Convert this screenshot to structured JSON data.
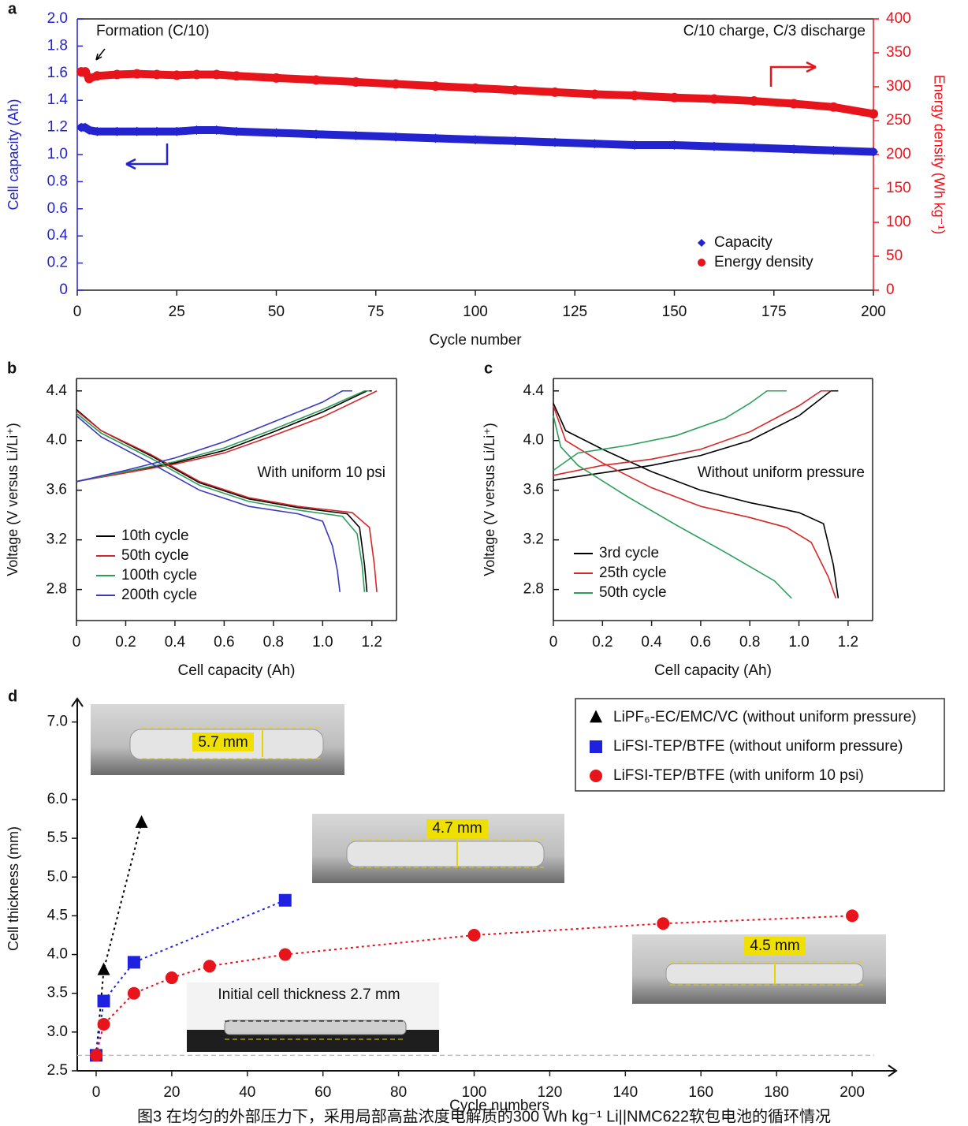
{
  "caption": "图3 在均匀的外部压力下，采用局部高盐浓度电解质的300 Wh kg⁻¹ Li||NMC622软包电池的循环情况",
  "chart_data": [
    {
      "type": "scatter",
      "label": "a",
      "frame": true,
      "xlabel": "Cycle number",
      "ylabel": "Cell capacity (Ah)",
      "y2label": "Energy density (Wh kg⁻¹)",
      "annotations": [
        "Formation (C/10)",
        "C/10 charge, C/3 discharge"
      ],
      "xlim": [
        0,
        200
      ],
      "xticks": [
        0,
        25,
        50,
        75,
        100,
        125,
        150,
        175,
        200
      ],
      "ylim": [
        0,
        2.0
      ],
      "yticks": [
        0,
        0.2,
        0.4,
        0.6,
        0.8,
        {
          "value": 1.0,
          "label": "1.0"
        },
        1.2,
        1.4,
        1.6,
        1.8,
        {
          "value": 2.0,
          "label": "2.0"
        }
      ],
      "y2lim": [
        0,
        400
      ],
      "y2ticks": [
        0,
        50,
        100,
        150,
        200,
        250,
        300,
        350,
        400
      ],
      "ycolor": "#2323d0",
      "y2color": "#e8141c",
      "legend": "lower right",
      "series": [
        {
          "name": "Capacity",
          "color": "#2323d0",
          "marker": "diamond",
          "axis": "y",
          "x": [
            1,
            2,
            3,
            5,
            10,
            15,
            20,
            25,
            30,
            35,
            40,
            50,
            60,
            70,
            80,
            90,
            100,
            110,
            120,
            130,
            140,
            150,
            160,
            170,
            180,
            190,
            200
          ],
          "values": [
            1.2,
            1.2,
            1.18,
            1.17,
            1.17,
            1.17,
            1.17,
            1.17,
            1.18,
            1.18,
            1.17,
            1.16,
            1.15,
            1.14,
            1.13,
            1.12,
            1.11,
            1.1,
            1.09,
            1.08,
            1.07,
            1.07,
            1.06,
            1.05,
            1.04,
            1.03,
            1.02
          ]
        },
        {
          "name": "Energy density",
          "color": "#e8141c",
          "marker": "circle",
          "axis": "y2",
          "x": [
            1,
            2,
            3,
            5,
            10,
            15,
            20,
            25,
            30,
            35,
            40,
            50,
            60,
            70,
            80,
            90,
            100,
            110,
            120,
            130,
            140,
            150,
            160,
            170,
            180,
            190,
            200
          ],
          "values": [
            322,
            322,
            312,
            316,
            318,
            319,
            318,
            317,
            318,
            318,
            316,
            313,
            310,
            307,
            304,
            301,
            298,
            295,
            292,
            289,
            287,
            284,
            282,
            279,
            275,
            270,
            260
          ]
        }
      ]
    },
    {
      "type": "line",
      "label": "b",
      "frame": true,
      "xlabel": "Cell capacity (Ah)",
      "ylabel": "Voltage (V versus Li/Li⁺)",
      "annotations": [
        "With uniform 10 psi"
      ],
      "xlim": [
        0,
        1.3
      ],
      "xticks": [
        0,
        0.2,
        0.4,
        0.6,
        0.8,
        {
          "value": 1.0,
          "label": "1.0"
        },
        1.2
      ],
      "ylim": [
        2.55,
        4.5
      ],
      "yticks": [
        2.8,
        3.2,
        3.6,
        {
          "value": 4.0,
          "label": "4.0"
        },
        4.4
      ],
      "legend": "lower left",
      "series": [
        {
          "name": "10th cycle",
          "color": "#000000",
          "x": [
            0,
            0.2,
            0.4,
            0.6,
            0.8,
            1.0,
            1.18,
            1.2,
            null,
            0,
            0.1,
            0.3,
            0.5,
            0.7,
            0.9,
            1.1,
            1.15,
            1.17,
            1.18
          ],
          "values": [
            3.67,
            3.75,
            3.82,
            3.92,
            4.07,
            4.23,
            4.4,
            4.4,
            null,
            4.25,
            4.08,
            3.88,
            3.66,
            3.53,
            3.46,
            3.41,
            3.3,
            3.0,
            2.78
          ]
        },
        {
          "name": "50th cycle",
          "color": "#d62728",
          "x": [
            0,
            0.2,
            0.4,
            0.6,
            0.8,
            1.0,
            1.2,
            1.22,
            null,
            0,
            0.1,
            0.3,
            0.5,
            0.7,
            0.9,
            1.12,
            1.19,
            1.21,
            1.22
          ],
          "values": [
            3.67,
            3.74,
            3.81,
            3.9,
            4.04,
            4.19,
            4.38,
            4.4,
            null,
            4.24,
            4.08,
            3.89,
            3.67,
            3.54,
            3.47,
            3.42,
            3.3,
            3.0,
            2.78
          ]
        },
        {
          "name": "100th cycle",
          "color": "#2ca05a",
          "x": [
            0,
            0.2,
            0.4,
            0.6,
            0.8,
            1.0,
            1.17,
            1.19,
            null,
            0,
            0.1,
            0.3,
            0.5,
            0.7,
            0.9,
            1.08,
            1.14,
            1.16,
            1.17
          ],
          "values": [
            3.67,
            3.75,
            3.83,
            3.94,
            4.09,
            4.25,
            4.4,
            4.4,
            null,
            4.22,
            4.06,
            3.86,
            3.64,
            3.51,
            3.44,
            3.39,
            3.25,
            3.0,
            2.78
          ]
        },
        {
          "name": "200th cycle",
          "color": "#3a3ac0",
          "x": [
            0,
            0.2,
            0.4,
            0.6,
            0.8,
            1.0,
            1.08,
            1.12,
            null,
            0,
            0.1,
            0.3,
            0.5,
            0.7,
            0.9,
            1.0,
            1.04,
            1.06,
            1.07
          ],
          "values": [
            3.67,
            3.76,
            3.86,
            3.99,
            4.15,
            4.31,
            4.4,
            4.4,
            null,
            4.2,
            4.03,
            3.82,
            3.6,
            3.47,
            3.41,
            3.35,
            3.15,
            2.95,
            2.78
          ]
        }
      ]
    },
    {
      "type": "line",
      "label": "c",
      "frame": true,
      "xlabel": "Cell capacity (Ah)",
      "ylabel": "Voltage (V versus Li/Li⁺)",
      "annotations": [
        "Without uniform pressure"
      ],
      "xlim": [
        0,
        1.3
      ],
      "xticks": [
        0,
        0.2,
        0.4,
        0.6,
        0.8,
        {
          "value": 1.0,
          "label": "1.0"
        },
        1.2
      ],
      "ylim": [
        2.55,
        4.5
      ],
      "yticks": [
        2.8,
        3.2,
        3.6,
        {
          "value": 4.0,
          "label": "4.0"
        },
        4.4
      ],
      "legend": "lower left",
      "series": [
        {
          "name": "3rd cycle",
          "color": "#000000",
          "x": [
            0,
            0.2,
            0.4,
            0.6,
            0.8,
            1.0,
            1.13,
            1.16,
            null,
            0,
            0.05,
            0.2,
            0.4,
            0.6,
            0.8,
            1.0,
            1.1,
            1.14,
            1.16
          ],
          "values": [
            3.68,
            3.74,
            3.8,
            3.88,
            4.0,
            4.2,
            4.4,
            4.4,
            null,
            4.3,
            4.08,
            3.93,
            3.75,
            3.6,
            3.5,
            3.42,
            3.33,
            3.0,
            2.73
          ]
        },
        {
          "name": "25th cycle",
          "color": "#d62728",
          "x": [
            0,
            0.2,
            0.4,
            0.6,
            0.8,
            1.0,
            1.09,
            1.13,
            null,
            0,
            0.05,
            0.2,
            0.4,
            0.6,
            0.8,
            0.95,
            1.05,
            1.12,
            1.15
          ],
          "values": [
            3.72,
            3.8,
            3.85,
            3.93,
            4.07,
            4.28,
            4.4,
            4.4,
            null,
            4.28,
            4.0,
            3.82,
            3.62,
            3.47,
            3.38,
            3.3,
            3.18,
            2.9,
            2.73
          ]
        },
        {
          "name": "50th cycle",
          "color": "#2ca05a",
          "x": [
            0,
            0.1,
            0.3,
            0.5,
            0.7,
            0.8,
            0.87,
            0.95,
            null,
            0,
            0.03,
            0.1,
            0.3,
            0.5,
            0.7,
            0.9,
            0.97
          ],
          "values": [
            3.76,
            3.9,
            3.96,
            4.04,
            4.18,
            4.3,
            4.4,
            4.4,
            null,
            4.2,
            3.95,
            3.8,
            3.55,
            3.32,
            3.1,
            2.87,
            2.73
          ]
        }
      ]
    },
    {
      "type": "scatter",
      "label": "d",
      "frame": false,
      "xlabel": "Cycle numbers",
      "ylabel": "Cell thickness (mm)",
      "annotations": [
        "5.7 mm",
        "4.7 mm",
        "4.5 mm",
        "Initial cell thickness 2.7 mm"
      ],
      "reference": 2.7,
      "xlim": [
        -5,
        210
      ],
      "xticks": [
        0,
        20,
        40,
        60,
        80,
        100,
        120,
        140,
        160,
        180,
        200
      ],
      "ylim": [
        2.5,
        7.2
      ],
      "yticks": [
        2.5,
        {
          "value": 3.0,
          "label": "3.0"
        },
        3.5,
        {
          "value": 4.0,
          "label": "4.0"
        },
        4.5,
        {
          "value": 5.0,
          "label": "5.0"
        },
        5.5,
        {
          "value": 6.0,
          "label": "6.0"
        },
        {
          "value": 7.0,
          "label": "7.0"
        }
      ],
      "legend": "upper right",
      "linestyle": "dotted",
      "series": [
        {
          "name": "LiPF₆-EC/EMC/VC (without uniform pressure)",
          "color": "#000000",
          "marker": "triangle",
          "x": [
            0,
            2,
            12
          ],
          "values": [
            2.7,
            3.8,
            5.7
          ]
        },
        {
          "name": "LiFSI-TEP/BTFE (without uniform pressure)",
          "color": "#1e22e0",
          "marker": "square",
          "x": [
            0,
            2,
            10,
            50
          ],
          "values": [
            2.7,
            3.4,
            3.9,
            4.7
          ]
        },
        {
          "name": "LiFSI-TEP/BTFE (with uniform 10 psi)",
          "color": "#e8141c",
          "marker": "circle",
          "x": [
            0,
            2,
            10,
            20,
            30,
            50,
            100,
            150,
            200
          ],
          "values": [
            2.7,
            3.1,
            3.5,
            3.7,
            3.85,
            4.0,
            4.25,
            4.4,
            4.5
          ]
        }
      ]
    }
  ]
}
